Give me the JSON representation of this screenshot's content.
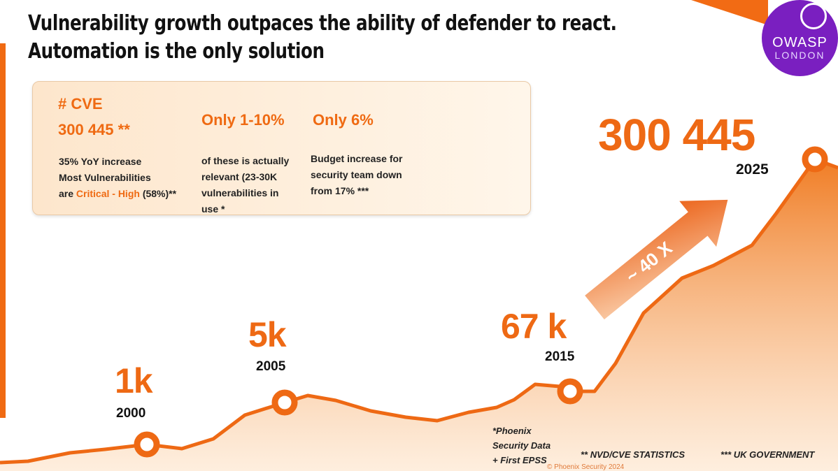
{
  "title_line1": "Vulnerability growth outpaces the ability of defender to react.",
  "title_line2": "Automation is the only solution",
  "logo": {
    "top": "OWASP",
    "bottom": "LONDON"
  },
  "box": {
    "col1": {
      "heading": "# CVE",
      "value": "300 445 **",
      "line1": "35% YoY increase",
      "line2": "Most Vulnerabilities",
      "line3_pre": "are ",
      "line3_highlight": "Critical - High",
      "line3_post": " (58%)**"
    },
    "col2": {
      "heading": "Only 1-10%",
      "lines": [
        "of these is actually",
        "relevant (23-30K",
        "vulnerabilities in",
        "use *"
      ]
    },
    "col3": {
      "heading": "Only 6%",
      "lines": [
        "Budget increase for",
        "security team down",
        "from 17% ***"
      ]
    }
  },
  "arrow_label": "~ 40 X",
  "notes": {
    "phoenix": [
      "*Phoenix",
      "Security Data",
      "+ First EPSS"
    ],
    "nvd": "** NVD/CVE STATISTICS",
    "uk": "*** UK GOVERNMENT",
    "copyright": "© Phoenix Security 2024"
  },
  "colors": {
    "accent": "#ef6a12",
    "logo": "#7a1fc0"
  },
  "chart_data": {
    "type": "area",
    "points": [
      {
        "year": "2000",
        "label": "1k"
      },
      {
        "year": "2005",
        "label": "5k"
      },
      {
        "year": "2015",
        "label": "67 k"
      },
      {
        "year": "2025",
        "label": "300 445"
      }
    ]
  }
}
